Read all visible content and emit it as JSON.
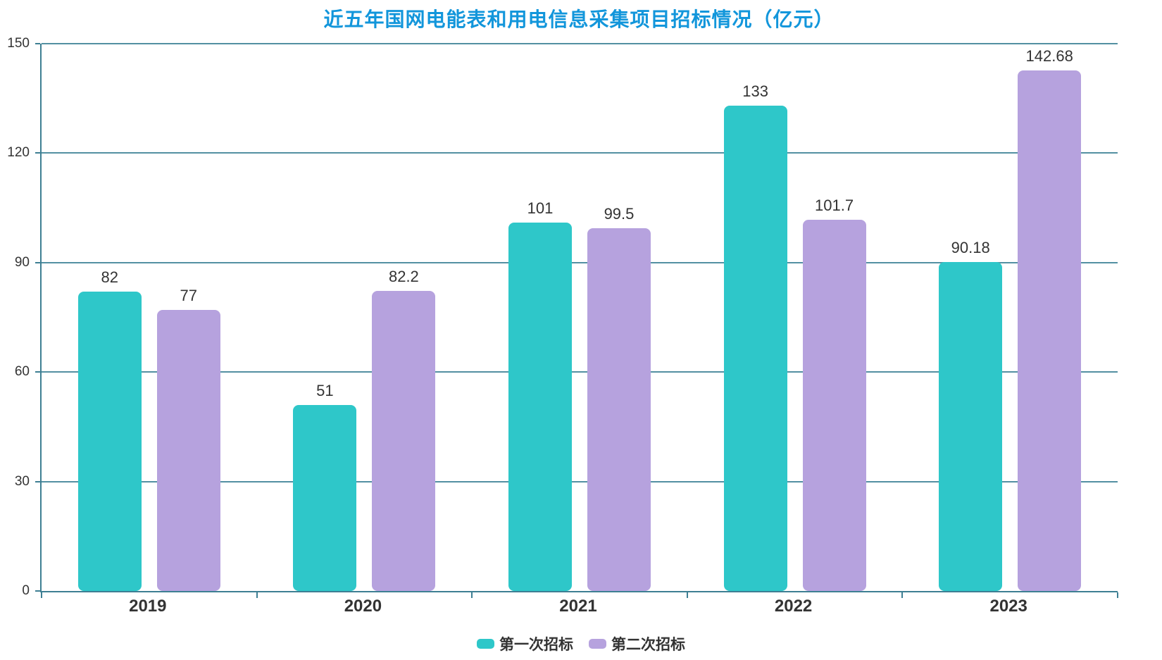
{
  "title": {
    "text": "近五年国网电能表和用电信息采集项目招标情况（亿元）",
    "color": "#1296db"
  },
  "chart_data": {
    "type": "bar",
    "categories": [
      "2019",
      "2020",
      "2021",
      "2022",
      "2023"
    ],
    "series": [
      {
        "name": "第一次招标",
        "color": "#2EC7C9",
        "values": [
          82,
          51,
          101,
          133,
          90.18
        ]
      },
      {
        "name": "第二次招标",
        "color": "#B6A2DE",
        "values": [
          77,
          82.2,
          99.5,
          101.7,
          142.68
        ]
      }
    ],
    "value_labels": {
      "第一次招标": [
        "82",
        "51",
        "101",
        "133",
        "90.18"
      ],
      "第二次招标": [
        "77",
        "82.2",
        "99.5",
        "101.7",
        "142.68"
      ]
    },
    "ylabel": "",
    "xlabel": "",
    "ylim": [
      0,
      150
    ],
    "yticks": [
      0,
      30,
      60,
      90,
      120,
      150
    ],
    "grid": true,
    "legend_position": "bottom",
    "bar_corner_radius": 8
  },
  "axis": {
    "axis_line_color": "#3e7f93",
    "grid_line_color": "#5390a2",
    "label_color": "#333333"
  }
}
